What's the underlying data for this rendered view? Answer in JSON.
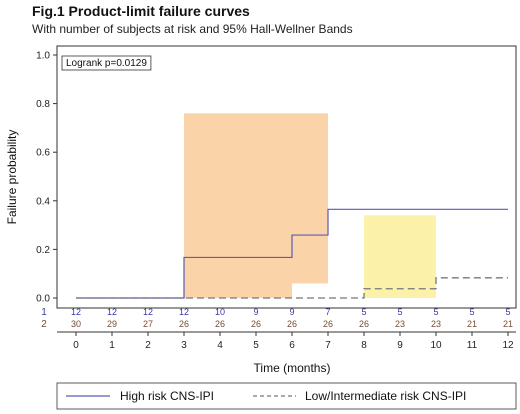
{
  "title": "Fig.1 Product-limit failure curves",
  "subtitle": "With number of subjects at risk and 95% Hall-Wellner Bands",
  "chart_data": {
    "type": "line",
    "title": "Fig.1 Product-limit failure curves",
    "subtitle": "With number of subjects at risk and 95% Hall-Wellner Bands",
    "xlabel": "Time (months)",
    "ylabel": "Failure probability",
    "xlim": [
      0,
      12
    ],
    "ylim": [
      0,
      1.0
    ],
    "xticks": [
      0,
      1,
      2,
      3,
      4,
      5,
      6,
      7,
      8,
      9,
      10,
      11,
      12
    ],
    "yticks": [
      0.0,
      0.2,
      0.4,
      0.6,
      0.8,
      1.0
    ],
    "annotation": "Logrank p=0.0129",
    "legend_position": "bottom",
    "series": [
      {
        "name": "High risk CNS-IPI",
        "color": "#5b5bb8",
        "style": "solid",
        "step_x": [
          0,
          3,
          6,
          7,
          12
        ],
        "step_y": [
          0.0,
          0.167,
          0.259,
          0.365,
          0.365
        ],
        "at_risk_label": "1",
        "at_risk": [
          12,
          12,
          12,
          12,
          10,
          9,
          9,
          7,
          5,
          5,
          5,
          5,
          5
        ]
      },
      {
        "name": "Low/Intermediate risk CNS-IPI",
        "color": "#777777",
        "style": "dashed",
        "step_x": [
          0,
          3,
          8,
          10,
          12
        ],
        "step_y": [
          0.0,
          0.0,
          0.038,
          0.083,
          0.083
        ],
        "at_risk_label": "2",
        "at_risk": [
          30,
          29,
          27,
          26,
          26,
          26,
          26,
          26,
          26,
          23,
          23,
          21,
          21
        ]
      }
    ],
    "bands": [
      {
        "series": "High risk CNS-IPI",
        "color": "#fbd3a8",
        "segments": [
          {
            "x": [
              3,
              6
            ],
            "y": [
              0.0,
              0.76
            ]
          },
          {
            "x": [
              6,
              7
            ],
            "y": [
              0.06,
              0.76
            ]
          }
        ]
      },
      {
        "series": "Low/Intermediate risk CNS-IPI",
        "color": "#fbf1a9",
        "segments": [
          {
            "x": [
              8,
              10
            ],
            "y": [
              0.0,
              0.34
            ]
          }
        ]
      }
    ]
  }
}
